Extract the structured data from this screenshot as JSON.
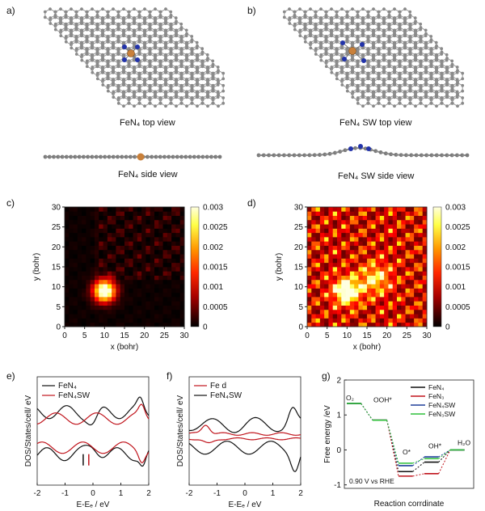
{
  "panels": {
    "a": {
      "letter": "a)",
      "top_caption": "FeN₄ top view",
      "side_caption": "FeN₄ side view"
    },
    "b": {
      "letter": "b)",
      "top_caption": "FeN₄ SW top view",
      "side_caption": "FeN₄ SW side view"
    },
    "c": {
      "letter": "c)"
    },
    "d": {
      "letter": "d)"
    },
    "e": {
      "letter": "e)"
    },
    "f": {
      "letter": "f)"
    },
    "g": {
      "letter": "g)"
    }
  },
  "colors": {
    "carbon": "#8a8a8a",
    "nitrogen": "#2233aa",
    "iron": "#c9803a",
    "red": "#c0141c",
    "black": "#111111",
    "blue": "#1f3f9a",
    "green": "#2fbf3a"
  },
  "chart_data": [
    {
      "id": "c",
      "type": "heatmap",
      "xlabel": "x (bohr)",
      "ylabel": "y (bohr)",
      "xlim": [
        0,
        30
      ],
      "ylim": [
        0,
        30
      ],
      "xticks": [
        "0",
        "5",
        "10",
        "15",
        "20",
        "25",
        "30"
      ],
      "yticks": [
        "0",
        "5",
        "10",
        "15",
        "20",
        "25",
        "30"
      ],
      "colorbar": {
        "ticks": [
          "0.003",
          "0.0025",
          "0.002",
          "0.0015",
          "0.001",
          "0.0005",
          "0"
        ],
        "range": [
          0,
          0.003
        ]
      }
    },
    {
      "id": "d",
      "type": "heatmap",
      "xlabel": "x (bohr)",
      "ylabel": "y (bohr)",
      "xlim": [
        0,
        30
      ],
      "ylim": [
        0,
        30
      ],
      "xticks": [
        "0",
        "5",
        "10",
        "15",
        "20",
        "25",
        "30"
      ],
      "yticks": [
        "0",
        "5",
        "10",
        "15",
        "20",
        "25",
        "30"
      ],
      "colorbar": {
        "ticks": [
          "0.003",
          "0.0025",
          "0.002",
          "0.0015",
          "0.001",
          "0.0005",
          "0"
        ],
        "range": [
          0,
          0.003
        ]
      }
    },
    {
      "id": "e",
      "type": "line",
      "xlabel": "E-Eₑ / eV",
      "ylabel": "DOS/States/cell/ eV",
      "xlim": [
        -2,
        2
      ],
      "xticks": [
        "-2",
        "-1",
        "0",
        "1",
        "2"
      ],
      "legend_position": "top-left",
      "series": [
        {
          "name": "FeN₄"
        },
        {
          "name": "FeN₄SW"
        }
      ]
    },
    {
      "id": "f",
      "type": "line",
      "xlabel": "E-Eₑ / eV",
      "ylabel": "DOS/States/cell/ eV",
      "xlim": [
        -2,
        2
      ],
      "xticks": [
        "-2",
        "-1",
        "0",
        "1",
        "2"
      ],
      "legend_position": "top-left",
      "series": [
        {
          "name": "Fe d"
        },
        {
          "name": "FeN₄SW"
        }
      ]
    },
    {
      "id": "g",
      "type": "line",
      "title": "",
      "xlabel": "Reaction corrdinate",
      "ylabel": "Free energy /eV",
      "ylim": [
        -1.1,
        2.0
      ],
      "yticks": [
        "2",
        "1",
        "0",
        "-1"
      ],
      "annotation": "0.90 V vs RHE",
      "state_labels": [
        "O₂",
        "OOH*",
        "O*",
        "OH*",
        "H₂O"
      ],
      "legend_position": "top-right",
      "series": [
        {
          "name": "FeN₄",
          "values": [
            1.33,
            0.85,
            -0.62,
            -0.35,
            0.0
          ]
        },
        {
          "name": "FeN₃",
          "values": [
            1.33,
            0.85,
            -0.75,
            -0.68,
            0.0
          ]
        },
        {
          "name": "FeN₄SW",
          "values": [
            1.33,
            0.85,
            -0.45,
            -0.2,
            0.0
          ]
        },
        {
          "name": "FeN₃SW",
          "values": [
            1.33,
            0.85,
            -0.38,
            -0.25,
            0.0
          ]
        }
      ]
    }
  ]
}
